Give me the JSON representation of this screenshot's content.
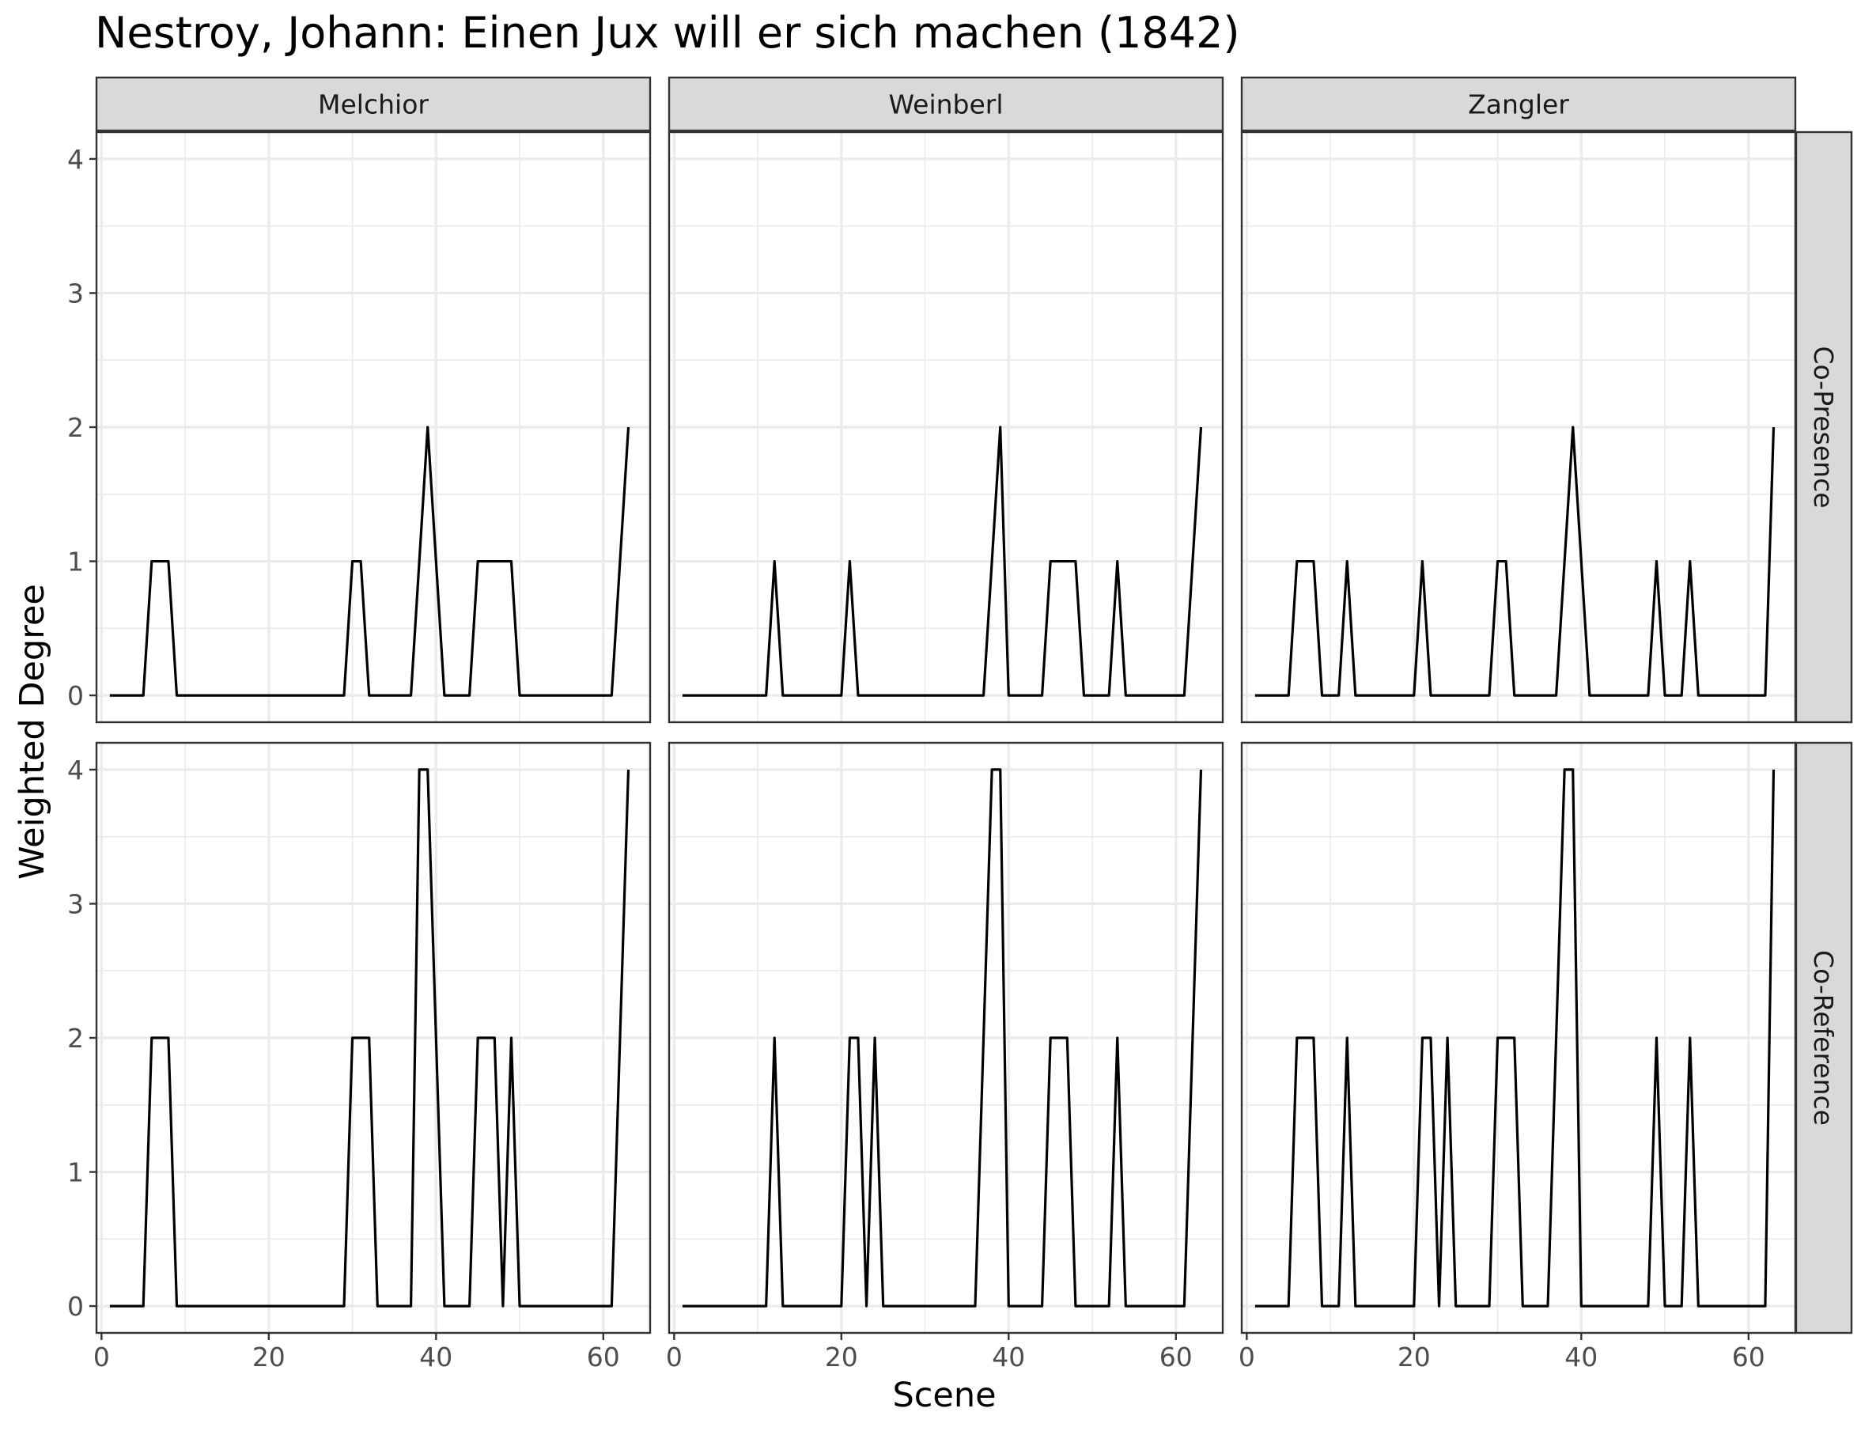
{
  "chart_data": {
    "type": "line",
    "title": "Nestroy, Johann: Einen Jux will er sich machen (1842)",
    "xlabel": "Scene",
    "ylabel": "Weighted Degree",
    "xlim": [
      -0.6,
      65.6
    ],
    "ylim": [
      -0.2,
      4.2
    ],
    "x_ticks": [
      0,
      20,
      40,
      60
    ],
    "y_ticks": [
      0,
      1,
      2,
      3,
      4
    ],
    "grid": true,
    "columns": [
      "Melchior",
      "Weinberl",
      "Zangler"
    ],
    "rows": [
      "Co-Presence",
      "Co-Reference"
    ],
    "x": [
      1,
      2,
      3,
      4,
      5,
      6,
      7,
      8,
      9,
      10,
      11,
      12,
      13,
      14,
      15,
      16,
      17,
      18,
      19,
      20,
      21,
      22,
      23,
      24,
      25,
      26,
      27,
      28,
      29,
      30,
      31,
      32,
      33,
      34,
      35,
      36,
      37,
      38,
      39,
      40,
      41,
      42,
      43,
      44,
      45,
      46,
      47,
      48,
      49,
      50,
      51,
      52,
      53,
      54,
      55,
      56,
      57,
      58,
      59,
      60,
      61,
      62,
      63
    ],
    "facets": [
      {
        "column": "Melchior",
        "row": "Co-Presence",
        "values": [
          0,
          0,
          0,
          0,
          0,
          1,
          1,
          1,
          0,
          0,
          0,
          0,
          0,
          0,
          0,
          0,
          0,
          0,
          0,
          0,
          0,
          0,
          0,
          0,
          0,
          0,
          0,
          0,
          0,
          1,
          1,
          0,
          0,
          0,
          0,
          0,
          0,
          1,
          2,
          1,
          0,
          0,
          0,
          0,
          1,
          1,
          1,
          1,
          1,
          0,
          0,
          0,
          0,
          0,
          0,
          0,
          0,
          0,
          0,
          0,
          0,
          1,
          2
        ]
      },
      {
        "column": "Weinberl",
        "row": "Co-Presence",
        "values": [
          0,
          0,
          0,
          0,
          0,
          0,
          0,
          0,
          0,
          0,
          0,
          1,
          0,
          0,
          0,
          0,
          0,
          0,
          0,
          0,
          1,
          0,
          0,
          0,
          0,
          0,
          0,
          0,
          0,
          0,
          0,
          0,
          0,
          0,
          0,
          0,
          0,
          1,
          2,
          0,
          0,
          0,
          0,
          0,
          1,
          1,
          1,
          1,
          0,
          0,
          0,
          0,
          1,
          0,
          0,
          0,
          0,
          0,
          0,
          0,
          0,
          1,
          2
        ]
      },
      {
        "column": "Zangler",
        "row": "Co-Presence",
        "values": [
          0,
          0,
          0,
          0,
          0,
          1,
          1,
          1,
          0,
          0,
          0,
          1,
          0,
          0,
          0,
          0,
          0,
          0,
          0,
          0,
          1,
          0,
          0,
          0,
          0,
          0,
          0,
          0,
          0,
          1,
          1,
          0,
          0,
          0,
          0,
          0,
          0,
          1,
          2,
          1,
          0,
          0,
          0,
          0,
          0,
          0,
          0,
          0,
          1,
          0,
          0,
          0,
          1,
          0,
          0,
          0,
          0,
          0,
          0,
          0,
          0,
          0,
          2
        ]
      },
      {
        "column": "Melchior",
        "row": "Co-Reference",
        "values": [
          0,
          0,
          0,
          0,
          0,
          2,
          2,
          2,
          0,
          0,
          0,
          0,
          0,
          0,
          0,
          0,
          0,
          0,
          0,
          0,
          0,
          0,
          0,
          0,
          0,
          0,
          0,
          0,
          0,
          2,
          2,
          2,
          0,
          0,
          0,
          0,
          0,
          4,
          4,
          2,
          0,
          0,
          0,
          0,
          2,
          2,
          2,
          0,
          2,
          0,
          0,
          0,
          0,
          0,
          0,
          0,
          0,
          0,
          0,
          0,
          0,
          2,
          4
        ]
      },
      {
        "column": "Weinberl",
        "row": "Co-Reference",
        "values": [
          0,
          0,
          0,
          0,
          0,
          0,
          0,
          0,
          0,
          0,
          0,
          2,
          0,
          0,
          0,
          0,
          0,
          0,
          0,
          0,
          2,
          2,
          0,
          2,
          0,
          0,
          0,
          0,
          0,
          0,
          0,
          0,
          0,
          0,
          0,
          0,
          2,
          4,
          4,
          0,
          0,
          0,
          0,
          0,
          2,
          2,
          2,
          0,
          0,
          0,
          0,
          0,
          2,
          0,
          0,
          0,
          0,
          0,
          0,
          0,
          0,
          2,
          4
        ]
      },
      {
        "column": "Zangler",
        "row": "Co-Reference",
        "values": [
          0,
          0,
          0,
          0,
          0,
          2,
          2,
          2,
          0,
          0,
          0,
          2,
          0,
          0,
          0,
          0,
          0,
          0,
          0,
          0,
          2,
          2,
          0,
          2,
          0,
          0,
          0,
          0,
          0,
          2,
          2,
          2,
          0,
          0,
          0,
          0,
          2,
          4,
          4,
          0,
          0,
          0,
          0,
          0,
          0,
          0,
          0,
          0,
          2,
          0,
          0,
          0,
          2,
          0,
          0,
          0,
          0,
          0,
          0,
          0,
          0,
          0,
          4
        ]
      }
    ]
  }
}
